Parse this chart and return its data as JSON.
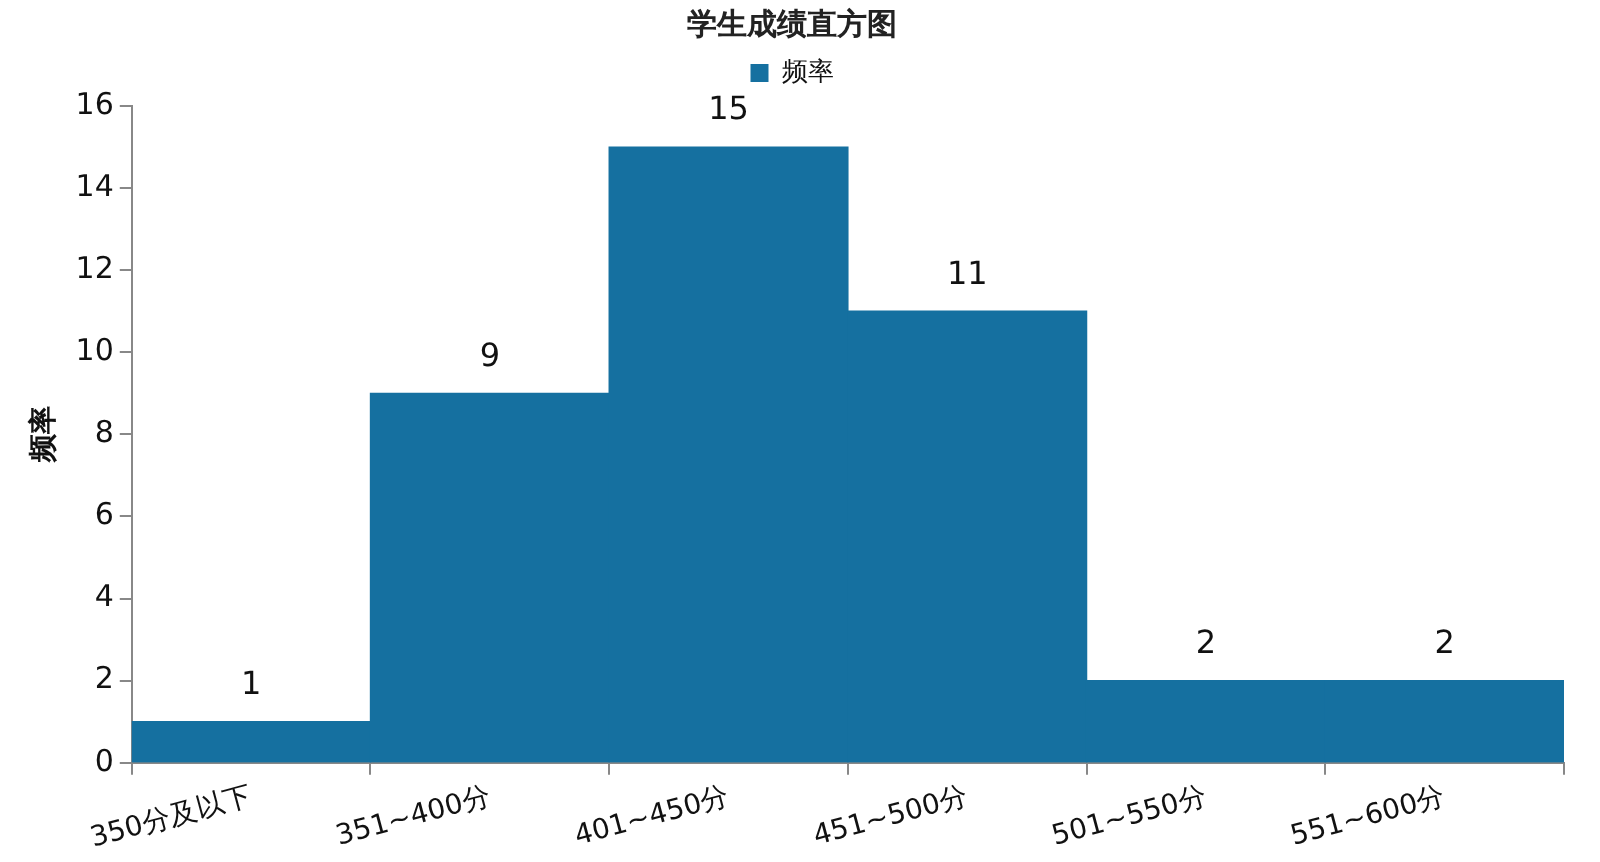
{
  "chart_data": {
    "type": "bar",
    "title": "学生成绩直方图",
    "ylabel": "频率",
    "categories": [
      "350分及以下",
      "351~400分",
      "401~450分",
      "451~500分",
      "501~550分",
      "551~600分"
    ],
    "series": [
      {
        "name": "频率",
        "color": "#1570a0",
        "values": [
          1,
          9,
          15,
          11,
          2,
          2
        ]
      }
    ],
    "ylim": [
      0,
      16
    ],
    "yticks": [
      0,
      2,
      4,
      6,
      8,
      10,
      12,
      14,
      16
    ],
    "grid": false,
    "legend": "top",
    "data_labels": true
  }
}
